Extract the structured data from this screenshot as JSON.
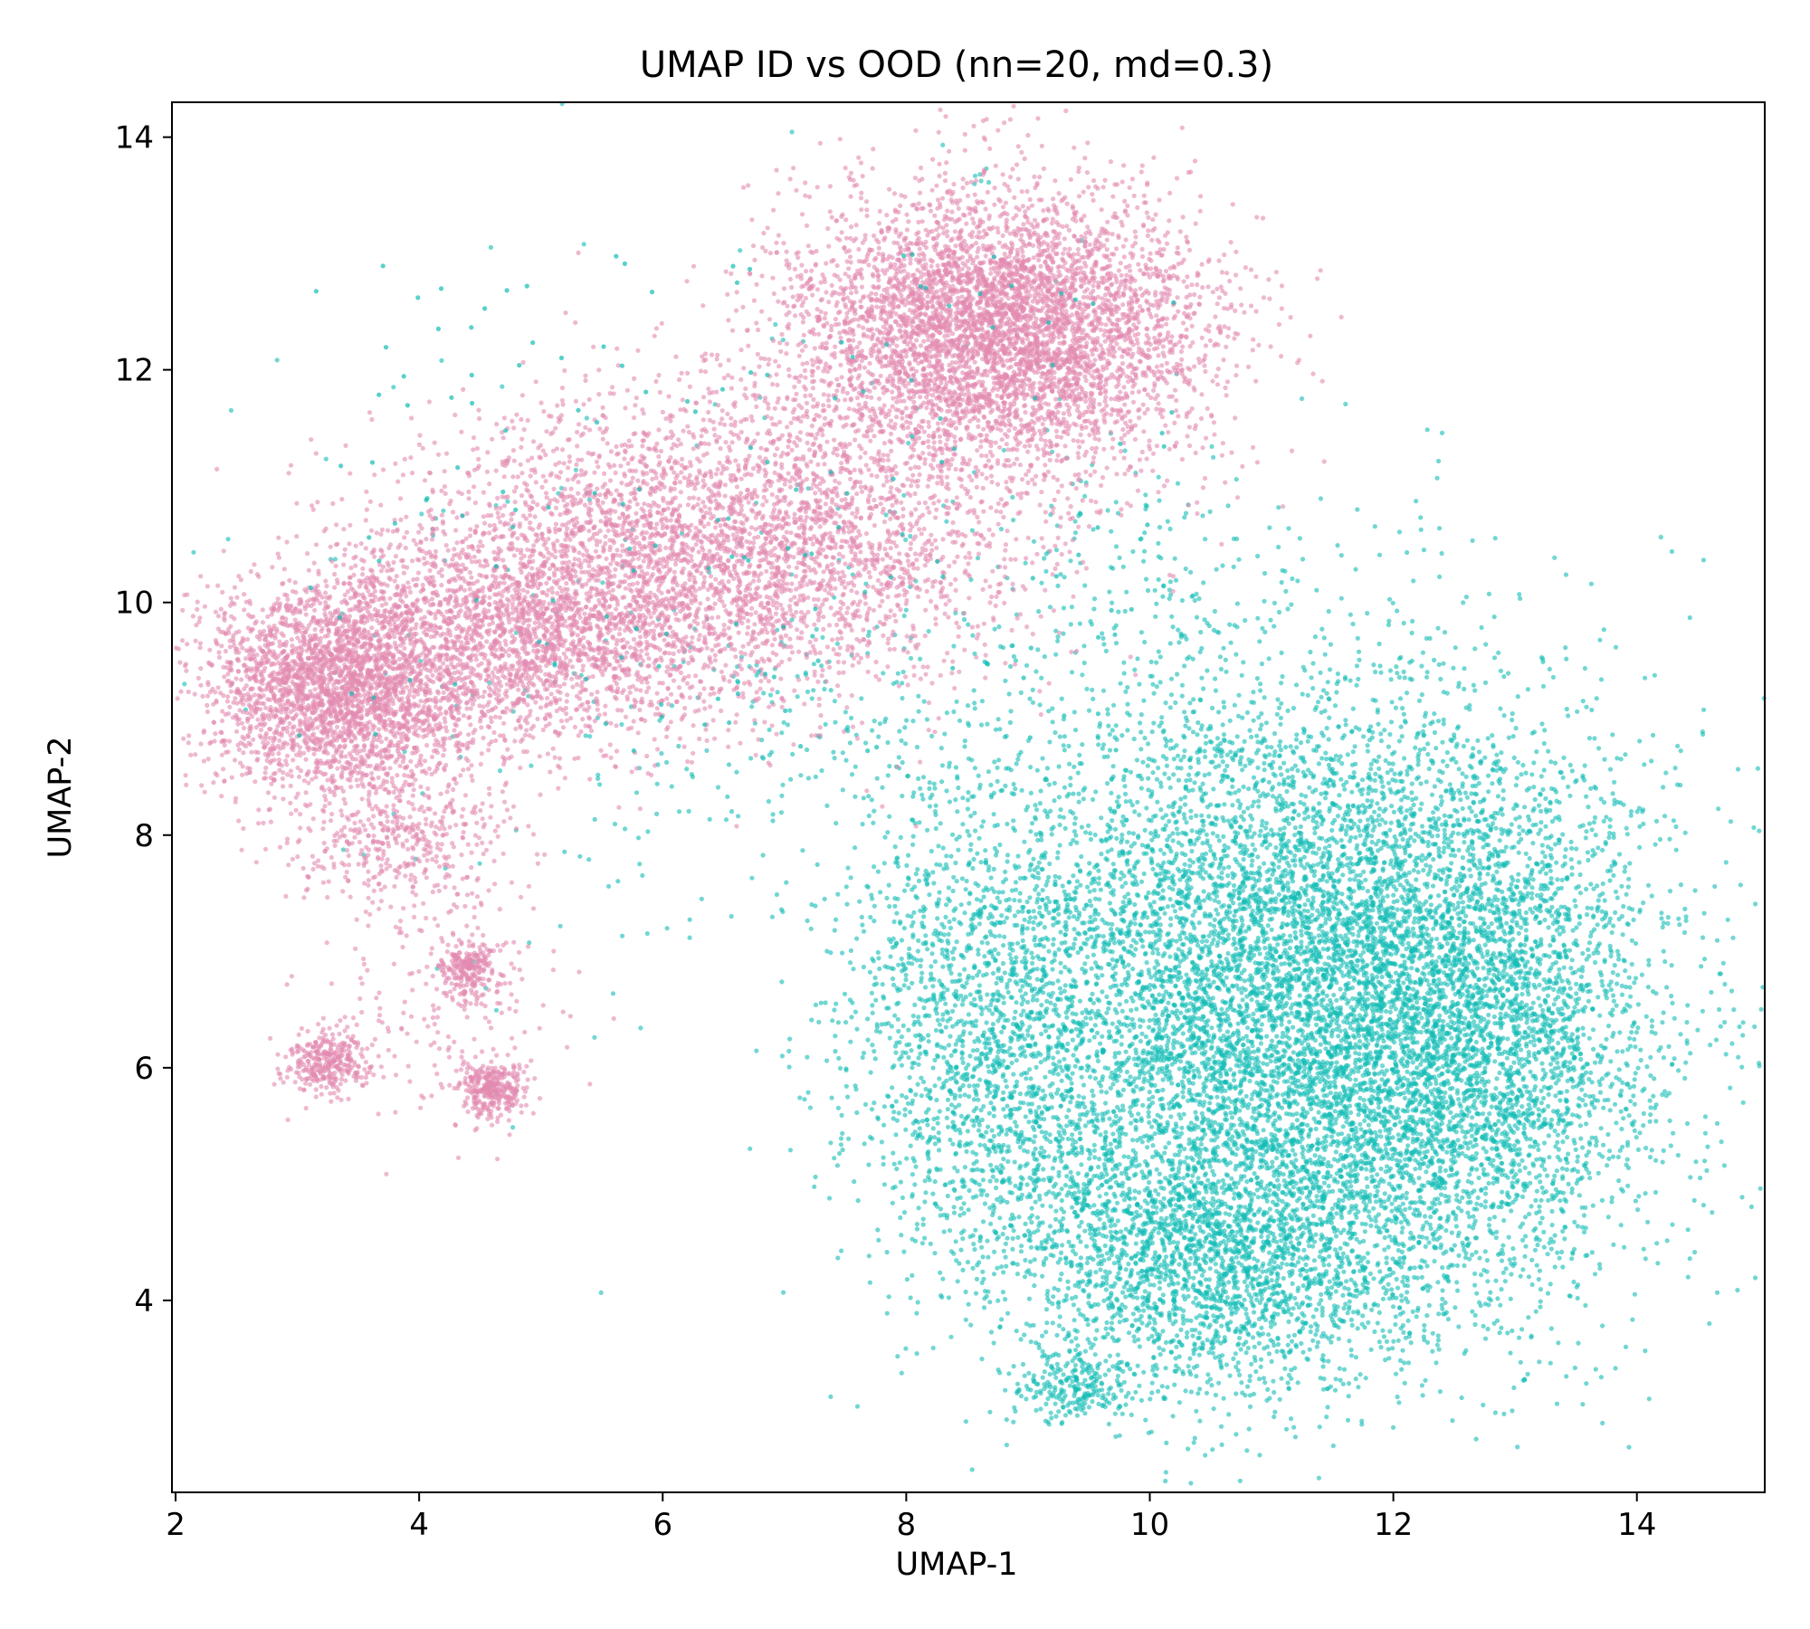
{
  "chart_data": {
    "type": "scatter",
    "title": "UMAP ID vs OOD (nn=20, md=0.3)",
    "xlabel": "UMAP-1",
    "ylabel": "UMAP-2",
    "xlim": [
      1.97,
      15.05
    ],
    "ylim": [
      2.35,
      14.3
    ],
    "xticks": [
      2,
      4,
      6,
      8,
      10,
      12,
      14
    ],
    "yticks": [
      4,
      6,
      8,
      10,
      12,
      14
    ],
    "grid": false,
    "legend": "none",
    "series": [
      {
        "color": "#e38bb1",
        "clusters": [
          {
            "cx": 8.75,
            "cy": 12.35,
            "sx": 0.85,
            "sy": 0.6,
            "n": 5200
          },
          {
            "cx": 6.5,
            "cy": 10.5,
            "sx": 1.2,
            "sy": 0.65,
            "n": 3600
          },
          {
            "cx": 4.8,
            "cy": 9.7,
            "sx": 0.9,
            "sy": 0.5,
            "n": 2400
          },
          {
            "cx": 3.3,
            "cy": 9.25,
            "sx": 0.55,
            "sy": 0.45,
            "n": 2600
          },
          {
            "cx": 3.85,
            "cy": 7.95,
            "sx": 0.45,
            "sy": 0.3,
            "n": 420
          },
          {
            "cx": 4.4,
            "cy": 6.85,
            "sx": 0.12,
            "sy": 0.13,
            "n": 240
          },
          {
            "cx": 3.25,
            "cy": 6.05,
            "sx": 0.17,
            "sy": 0.13,
            "n": 320
          },
          {
            "cx": 4.6,
            "cy": 5.8,
            "sx": 0.13,
            "sy": 0.12,
            "n": 320
          },
          {
            "cx": 4.2,
            "cy": 6.6,
            "sx": 0.55,
            "sy": 0.6,
            "n": 180
          }
        ]
      },
      {
        "color": "#12bcb5",
        "clusters": [
          {
            "cx": 11.2,
            "cy": 6.6,
            "sx": 1.35,
            "sy": 1.35,
            "n": 9500
          },
          {
            "cx": 10.5,
            "cy": 4.4,
            "sx": 0.9,
            "sy": 0.6,
            "n": 2200
          },
          {
            "cx": 12.7,
            "cy": 6.4,
            "sx": 0.7,
            "sy": 1.1,
            "n": 2000
          },
          {
            "cx": 8.6,
            "cy": 6.3,
            "sx": 0.55,
            "sy": 1.0,
            "n": 1300
          },
          {
            "cx": 9.4,
            "cy": 3.25,
            "sx": 0.25,
            "sy": 0.15,
            "n": 220
          },
          {
            "cx": 7.3,
            "cy": 9.0,
            "sx": 0.9,
            "sy": 0.55,
            "n": 180
          },
          {
            "cx": 9.8,
            "cy": 10.2,
            "sx": 0.8,
            "sy": 0.6,
            "n": 160
          },
          {
            "cx": 5.5,
            "cy": 8.0,
            "sx": 1.0,
            "sy": 1.2,
            "n": 70
          },
          {
            "cx": 6.5,
            "cy": 10.8,
            "sx": 2.5,
            "sy": 1.4,
            "n": 110
          },
          {
            "cx": 8.6,
            "cy": 13.65,
            "sx": 0.07,
            "sy": 0.05,
            "n": 6
          }
        ]
      }
    ]
  }
}
